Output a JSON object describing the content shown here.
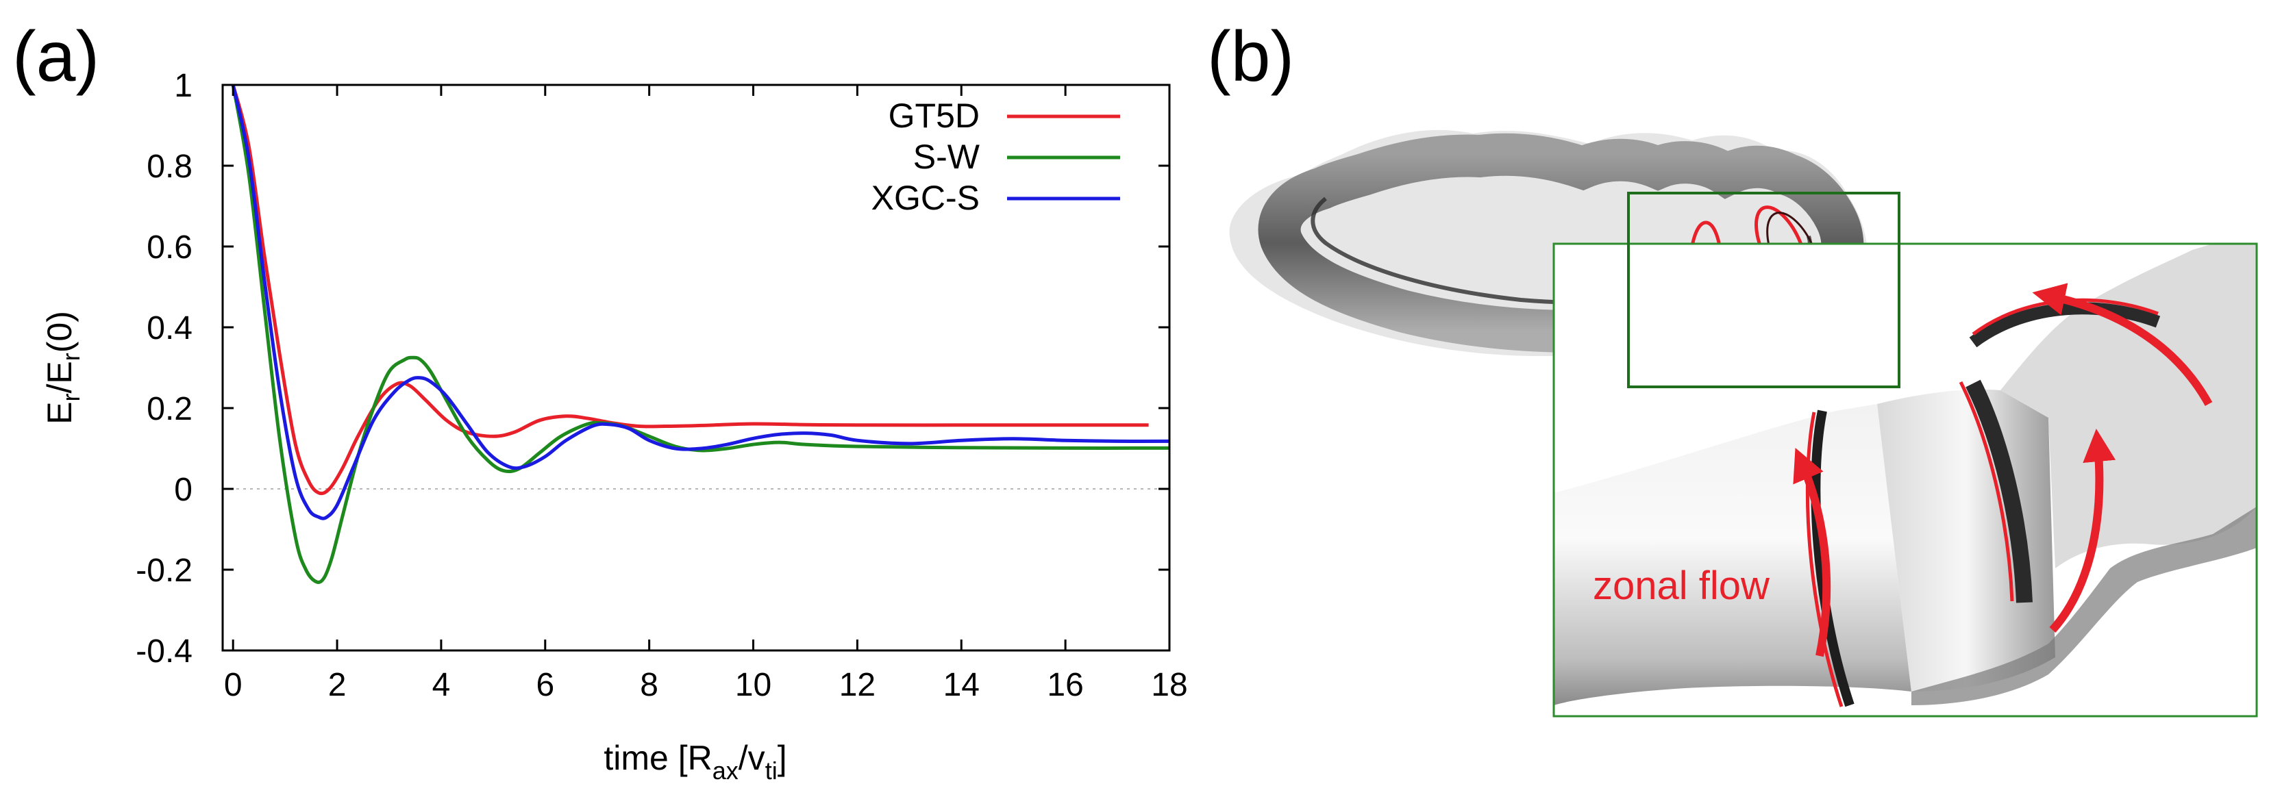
{
  "panel_labels": {
    "a": "(a)",
    "b": "(b)"
  },
  "chart_data": {
    "type": "line",
    "title": "",
    "xlabel": "time [R_ax/v_ti]",
    "xlabel_parts": {
      "main": "time [R",
      "sub1": "ax",
      "mid": "/v",
      "sub2": "ti",
      "end": "]"
    },
    "ylabel": "E_r/E_r(0)",
    "ylabel_parts": {
      "a": "E",
      "sub_a": "r",
      "b": "/E",
      "sub_b": "r",
      "c": "(0)"
    },
    "xlim": [
      -0.2,
      18
    ],
    "ylim": [
      -0.4,
      1
    ],
    "xticks": [
      0,
      2,
      4,
      6,
      8,
      10,
      12,
      14,
      16,
      18
    ],
    "xtick_labels": [
      "0",
      "2",
      "4",
      "6",
      "8",
      "10",
      "12",
      "14",
      "16",
      "18"
    ],
    "yticks": [
      -0.4,
      -0.2,
      0,
      0.2,
      0.4,
      0.6,
      0.8,
      1
    ],
    "ytick_labels": [
      "-0.4",
      "-0.2",
      "0",
      "0.2",
      "0.4",
      "0.6",
      "0.8",
      "1"
    ],
    "zero_line": true,
    "grid": false,
    "legend_position": "top-right",
    "series": [
      {
        "name": "GT5D",
        "color": "#e8202a",
        "x": [
          0,
          0.3,
          0.6,
          0.9,
          1.2,
          1.45,
          1.65,
          1.85,
          2.1,
          2.4,
          2.8,
          3.15,
          3.4,
          3.7,
          4.1,
          4.5,
          5.0,
          5.4,
          5.9,
          6.4,
          6.8,
          7.3,
          7.8,
          8.3,
          9.0,
          10.0,
          11.0,
          12.0,
          14.0,
          16.0,
          17.6
        ],
        "y": [
          1,
          0.85,
          0.58,
          0.33,
          0.11,
          0.02,
          -0.01,
          0.0,
          0.05,
          0.13,
          0.22,
          0.26,
          0.255,
          0.22,
          0.17,
          0.14,
          0.13,
          0.14,
          0.17,
          0.18,
          0.175,
          0.163,
          0.155,
          0.155,
          0.157,
          0.161,
          0.159,
          0.158,
          0.158,
          0.158,
          0.158
        ]
      },
      {
        "name": "S-W",
        "color": "#1e8a1e",
        "x": [
          0,
          0.3,
          0.6,
          0.9,
          1.2,
          1.4,
          1.6,
          1.75,
          1.9,
          2.1,
          2.4,
          2.7,
          3.0,
          3.3,
          3.45,
          3.6,
          3.8,
          4.1,
          4.5,
          4.9,
          5.2,
          5.5,
          5.9,
          6.3,
          6.8,
          7.1,
          7.5,
          8.0,
          8.5,
          9.0,
          9.5,
          10.0,
          10.5,
          11.0,
          12.0,
          14.0,
          16.0,
          18.0
        ],
        "y": [
          1,
          0.78,
          0.45,
          0.12,
          -0.12,
          -0.2,
          -0.23,
          -0.22,
          -0.17,
          -0.07,
          0.08,
          0.2,
          0.29,
          0.32,
          0.325,
          0.32,
          0.29,
          0.22,
          0.13,
          0.07,
          0.045,
          0.05,
          0.09,
          0.13,
          0.16,
          0.163,
          0.155,
          0.13,
          0.105,
          0.095,
          0.1,
          0.11,
          0.115,
          0.11,
          0.105,
          0.102,
          0.101,
          0.101
        ]
      },
      {
        "name": "XGC-S",
        "color": "#1a1ae0",
        "x": [
          0,
          0.3,
          0.6,
          0.9,
          1.2,
          1.45,
          1.65,
          1.8,
          2.0,
          2.3,
          2.7,
          3.1,
          3.4,
          3.6,
          3.8,
          4.1,
          4.5,
          4.9,
          5.3,
          5.6,
          6.0,
          6.4,
          6.9,
          7.2,
          7.6,
          8.0,
          8.5,
          9.0,
          9.5,
          10.0,
          10.5,
          11.0,
          11.5,
          12.0,
          13.0,
          14.0,
          15.0,
          16.0,
          17.0,
          18.0
        ],
        "y": [
          1,
          0.82,
          0.52,
          0.24,
          0.03,
          -0.05,
          -0.07,
          -0.07,
          -0.04,
          0.05,
          0.17,
          0.24,
          0.27,
          0.275,
          0.265,
          0.23,
          0.16,
          0.09,
          0.055,
          0.055,
          0.08,
          0.12,
          0.155,
          0.16,
          0.15,
          0.12,
          0.1,
          0.1,
          0.11,
          0.125,
          0.135,
          0.138,
          0.133,
          0.12,
          0.112,
          0.12,
          0.124,
          0.12,
          0.118,
          0.118
        ]
      }
    ]
  },
  "panel_b": {
    "annotation": "zonal flow",
    "annotation_color": "#e8202a",
    "inset_frame_color": "#1e6e1e"
  }
}
